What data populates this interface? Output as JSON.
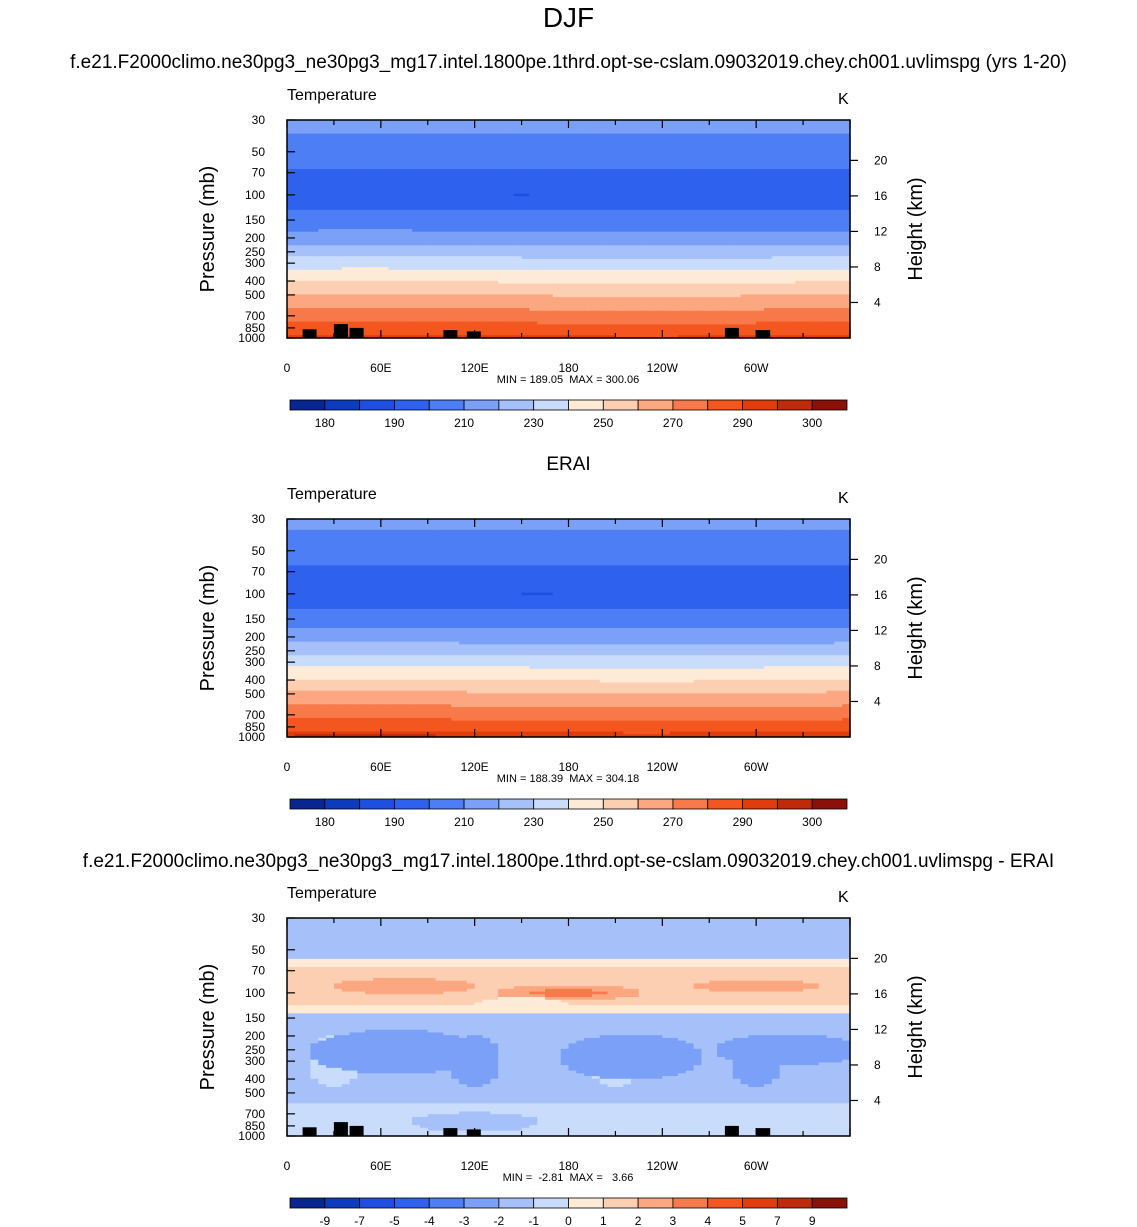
{
  "figure": {
    "season": "DJF",
    "case_title": "f.e21.F2000climo.ne30pg3_ne30pg3_mg17.intel.1800pe.1thrd.opt-se-cslam.09032019.chey.ch001.uvlimspg (yrs 1-20)",
    "obs_title": "ERAI",
    "diff_title": "f.e21.F2000climo.ne30pg3_ne30pg3_mg17.intel.1800pe.1thrd.opt-se-cslam.09032019.chey.ch001.uvlimspg - ERAI"
  },
  "chart_data": [
    {
      "type": "heatmap",
      "name": "model",
      "variable": "Temperature",
      "units": "K",
      "xlabel": "",
      "ylabel": "Pressure (mb)",
      "y2label": "Height (km)",
      "x_ticks": [
        "0",
        "60E",
        "120E",
        "180",
        "120W",
        "60W"
      ],
      "y_ticks": [
        "30",
        "50",
        "70",
        "100",
        "150",
        "200",
        "250",
        "300",
        "400",
        "500",
        "700",
        "850",
        "1000"
      ],
      "y2_ticks": [
        "20",
        "16",
        "12",
        "8",
        "4"
      ],
      "stats": "MIN = 189.05  MAX = 300.06",
      "min": 189.05,
      "max": 300.06,
      "colorbar_labels": [
        "180",
        "190",
        "210",
        "230",
        "250",
        "270",
        "290",
        "300"
      ],
      "colorbar_levels": [
        175,
        180,
        185,
        190,
        200,
        210,
        220,
        230,
        240,
        250,
        260,
        270,
        280,
        290,
        295,
        300,
        305
      ],
      "colors": [
        "#08268f",
        "#0c3cbd",
        "#1f4fe0",
        "#2e62ee",
        "#4d7ef5",
        "#7aa0f8",
        "#a6c1f9",
        "#c9dcfb",
        "#fdebd8",
        "#fdcfb2",
        "#fba780",
        "#f8794a",
        "#f4561f",
        "#e03c0c",
        "#be2a0a",
        "#8a1008"
      ],
      "profile": [
        {
          "p": 30,
          "t": 214
        },
        {
          "p": 40,
          "t": 209
        },
        {
          "p": 50,
          "t": 205
        },
        {
          "p": 60,
          "t": 202
        },
        {
          "p": 70,
          "t": 199
        },
        {
          "p": 85,
          "t": 197
        },
        {
          "p": 100,
          "t": 196
        },
        {
          "p": 120,
          "t": 198
        },
        {
          "p": 150,
          "t": 204
        },
        {
          "p": 200,
          "t": 214
        },
        {
          "p": 250,
          "t": 225
        },
        {
          "p": 300,
          "t": 235
        },
        {
          "p": 400,
          "t": 249
        },
        {
          "p": 500,
          "t": 260
        },
        {
          "p": 600,
          "t": 268
        },
        {
          "p": 700,
          "t": 275
        },
        {
          "p": 850,
          "t": 284
        },
        {
          "p": 925,
          "t": 288
        },
        {
          "p": 1000,
          "t": 292
        }
      ],
      "cold_core": {
        "lon": 150,
        "p": 100,
        "t": 189.5
      },
      "terrain": [
        [
          10,
          870
        ],
        [
          30,
          800
        ],
        [
          40,
          850
        ],
        [
          100,
          880
        ],
        [
          115,
          900
        ],
        [
          280,
          850
        ],
        [
          300,
          880
        ]
      ]
    },
    {
      "type": "heatmap",
      "name": "obs",
      "variable": "Temperature",
      "units": "K",
      "xlabel": "",
      "ylabel": "Pressure (mb)",
      "y2label": "Height (km)",
      "x_ticks": [
        "0",
        "60E",
        "120E",
        "180",
        "120W",
        "60W"
      ],
      "y_ticks": [
        "30",
        "50",
        "70",
        "100",
        "150",
        "200",
        "250",
        "300",
        "400",
        "500",
        "700",
        "850",
        "1000"
      ],
      "y2_ticks": [
        "20",
        "16",
        "12",
        "8",
        "4"
      ],
      "stats": "MIN = 188.39  MAX = 304.18",
      "min": 188.39,
      "max": 304.18,
      "colorbar_labels": [
        "180",
        "190",
        "210",
        "230",
        "250",
        "270",
        "290",
        "300"
      ],
      "colorbar_levels": [
        175,
        180,
        185,
        190,
        200,
        210,
        220,
        230,
        240,
        250,
        260,
        270,
        280,
        290,
        295,
        300,
        305
      ],
      "colors": [
        "#08268f",
        "#0c3cbd",
        "#1f4fe0",
        "#2e62ee",
        "#4d7ef5",
        "#7aa0f8",
        "#a6c1f9",
        "#c9dcfb",
        "#fdebd8",
        "#fdcfb2",
        "#fba780",
        "#f8794a",
        "#f4561f",
        "#e03c0c",
        "#be2a0a",
        "#8a1008"
      ],
      "profile": [
        {
          "p": 30,
          "t": 213
        },
        {
          "p": 40,
          "t": 208
        },
        {
          "p": 50,
          "t": 204
        },
        {
          "p": 60,
          "t": 201
        },
        {
          "p": 70,
          "t": 198
        },
        {
          "p": 85,
          "t": 196
        },
        {
          "p": 100,
          "t": 195
        },
        {
          "p": 120,
          "t": 198
        },
        {
          "p": 150,
          "t": 205
        },
        {
          "p": 200,
          "t": 215
        },
        {
          "p": 250,
          "t": 226
        },
        {
          "p": 300,
          "t": 236
        },
        {
          "p": 400,
          "t": 250
        },
        {
          "p": 500,
          "t": 261
        },
        {
          "p": 600,
          "t": 269
        },
        {
          "p": 700,
          "t": 276
        },
        {
          "p": 850,
          "t": 285
        },
        {
          "p": 925,
          "t": 290
        },
        {
          "p": 1000,
          "t": 296
        }
      ],
      "cold_core": {
        "lon": 160,
        "p": 100,
        "t": 188.6
      },
      "terrain": []
    },
    {
      "type": "heatmap",
      "name": "difference",
      "variable": "Temperature",
      "units": "K",
      "xlabel": "",
      "ylabel": "Pressure (mb)",
      "y2label": "Height (km)",
      "x_ticks": [
        "0",
        "60E",
        "120E",
        "180",
        "120W",
        "60W"
      ],
      "y_ticks": [
        "30",
        "50",
        "70",
        "100",
        "150",
        "200",
        "250",
        "300",
        "400",
        "500",
        "700",
        "850",
        "1000"
      ],
      "y2_ticks": [
        "20",
        "16",
        "12",
        "8",
        "4"
      ],
      "stats": "MIN =  -2.81  MAX =   3.66",
      "min": -2.81,
      "max": 3.66,
      "colorbar_labels": [
        "-9",
        "-7",
        "-5",
        "-4",
        "-3",
        "-2",
        "-1",
        "0",
        "1",
        "2",
        "3",
        "4",
        "5",
        "7",
        "9"
      ],
      "colorbar_levels": [
        -10,
        -9,
        -7,
        -5,
        -4,
        -3,
        -2,
        -1,
        0,
        1,
        2,
        3,
        4,
        5,
        7,
        9,
        10
      ],
      "colors": [
        "#08268f",
        "#0c3cbd",
        "#1f4fe0",
        "#2e62ee",
        "#4d7ef5",
        "#7aa0f8",
        "#a6c1f9",
        "#c9dcfb",
        "#fdebd8",
        "#fdcfb2",
        "#fba780",
        "#f8794a",
        "#f4561f",
        "#e03c0c",
        "#be2a0a",
        "#8a1008"
      ],
      "bands": [
        {
          "p_top": 30,
          "p_bot": 58,
          "v": -1.5
        },
        {
          "p_top": 58,
          "p_bot": 65,
          "v": 0.5
        },
        {
          "p_top": 65,
          "p_bot": 120,
          "v": 1.5
        },
        {
          "p_top": 120,
          "p_bot": 140,
          "v": 0.5
        },
        {
          "p_top": 140,
          "p_bot": 165,
          "v": -1.5
        },
        {
          "p_top": 165,
          "p_bot": 420,
          "v": -1.5
        },
        {
          "p_top": 420,
          "p_bot": 600,
          "v": -1.5
        },
        {
          "p_top": 600,
          "p_bot": 1000,
          "v": -0.5
        }
      ],
      "blobs": [
        {
          "lon": 180,
          "p": 100,
          "dlon": 45,
          "dp": 0.12,
          "v": 2.5
        },
        {
          "lon": 180,
          "p": 100,
          "dlon": 22,
          "dp": 0.06,
          "v": 3.5
        },
        {
          "lon": 75,
          "p": 90,
          "dlon": 45,
          "dp": 0.12,
          "v": 2.5
        },
        {
          "lon": 300,
          "p": 90,
          "dlon": 40,
          "dp": 0.1,
          "v": 2.5
        },
        {
          "lon": 220,
          "p": 280,
          "dlon": 45,
          "dp": 0.35,
          "v": -2.5
        },
        {
          "lon": 70,
          "p": 260,
          "dlon": 55,
          "dp": 0.35,
          "v": -2.5
        },
        {
          "lon": 320,
          "p": 250,
          "dlon": 45,
          "dp": 0.25,
          "v": -2.5
        },
        {
          "lon": 150,
          "p": 120,
          "dlon": 30,
          "dp": 0.1,
          "v": 0.5
        },
        {
          "lon": 120,
          "p": 800,
          "dlon": 40,
          "dp": 0.15,
          "v": -1.5
        }
      ],
      "terrain": [
        [
          10,
          870
        ],
        [
          30,
          800
        ],
        [
          40,
          850
        ],
        [
          100,
          880
        ],
        [
          115,
          900
        ],
        [
          280,
          850
        ],
        [
          300,
          880
        ]
      ]
    }
  ]
}
